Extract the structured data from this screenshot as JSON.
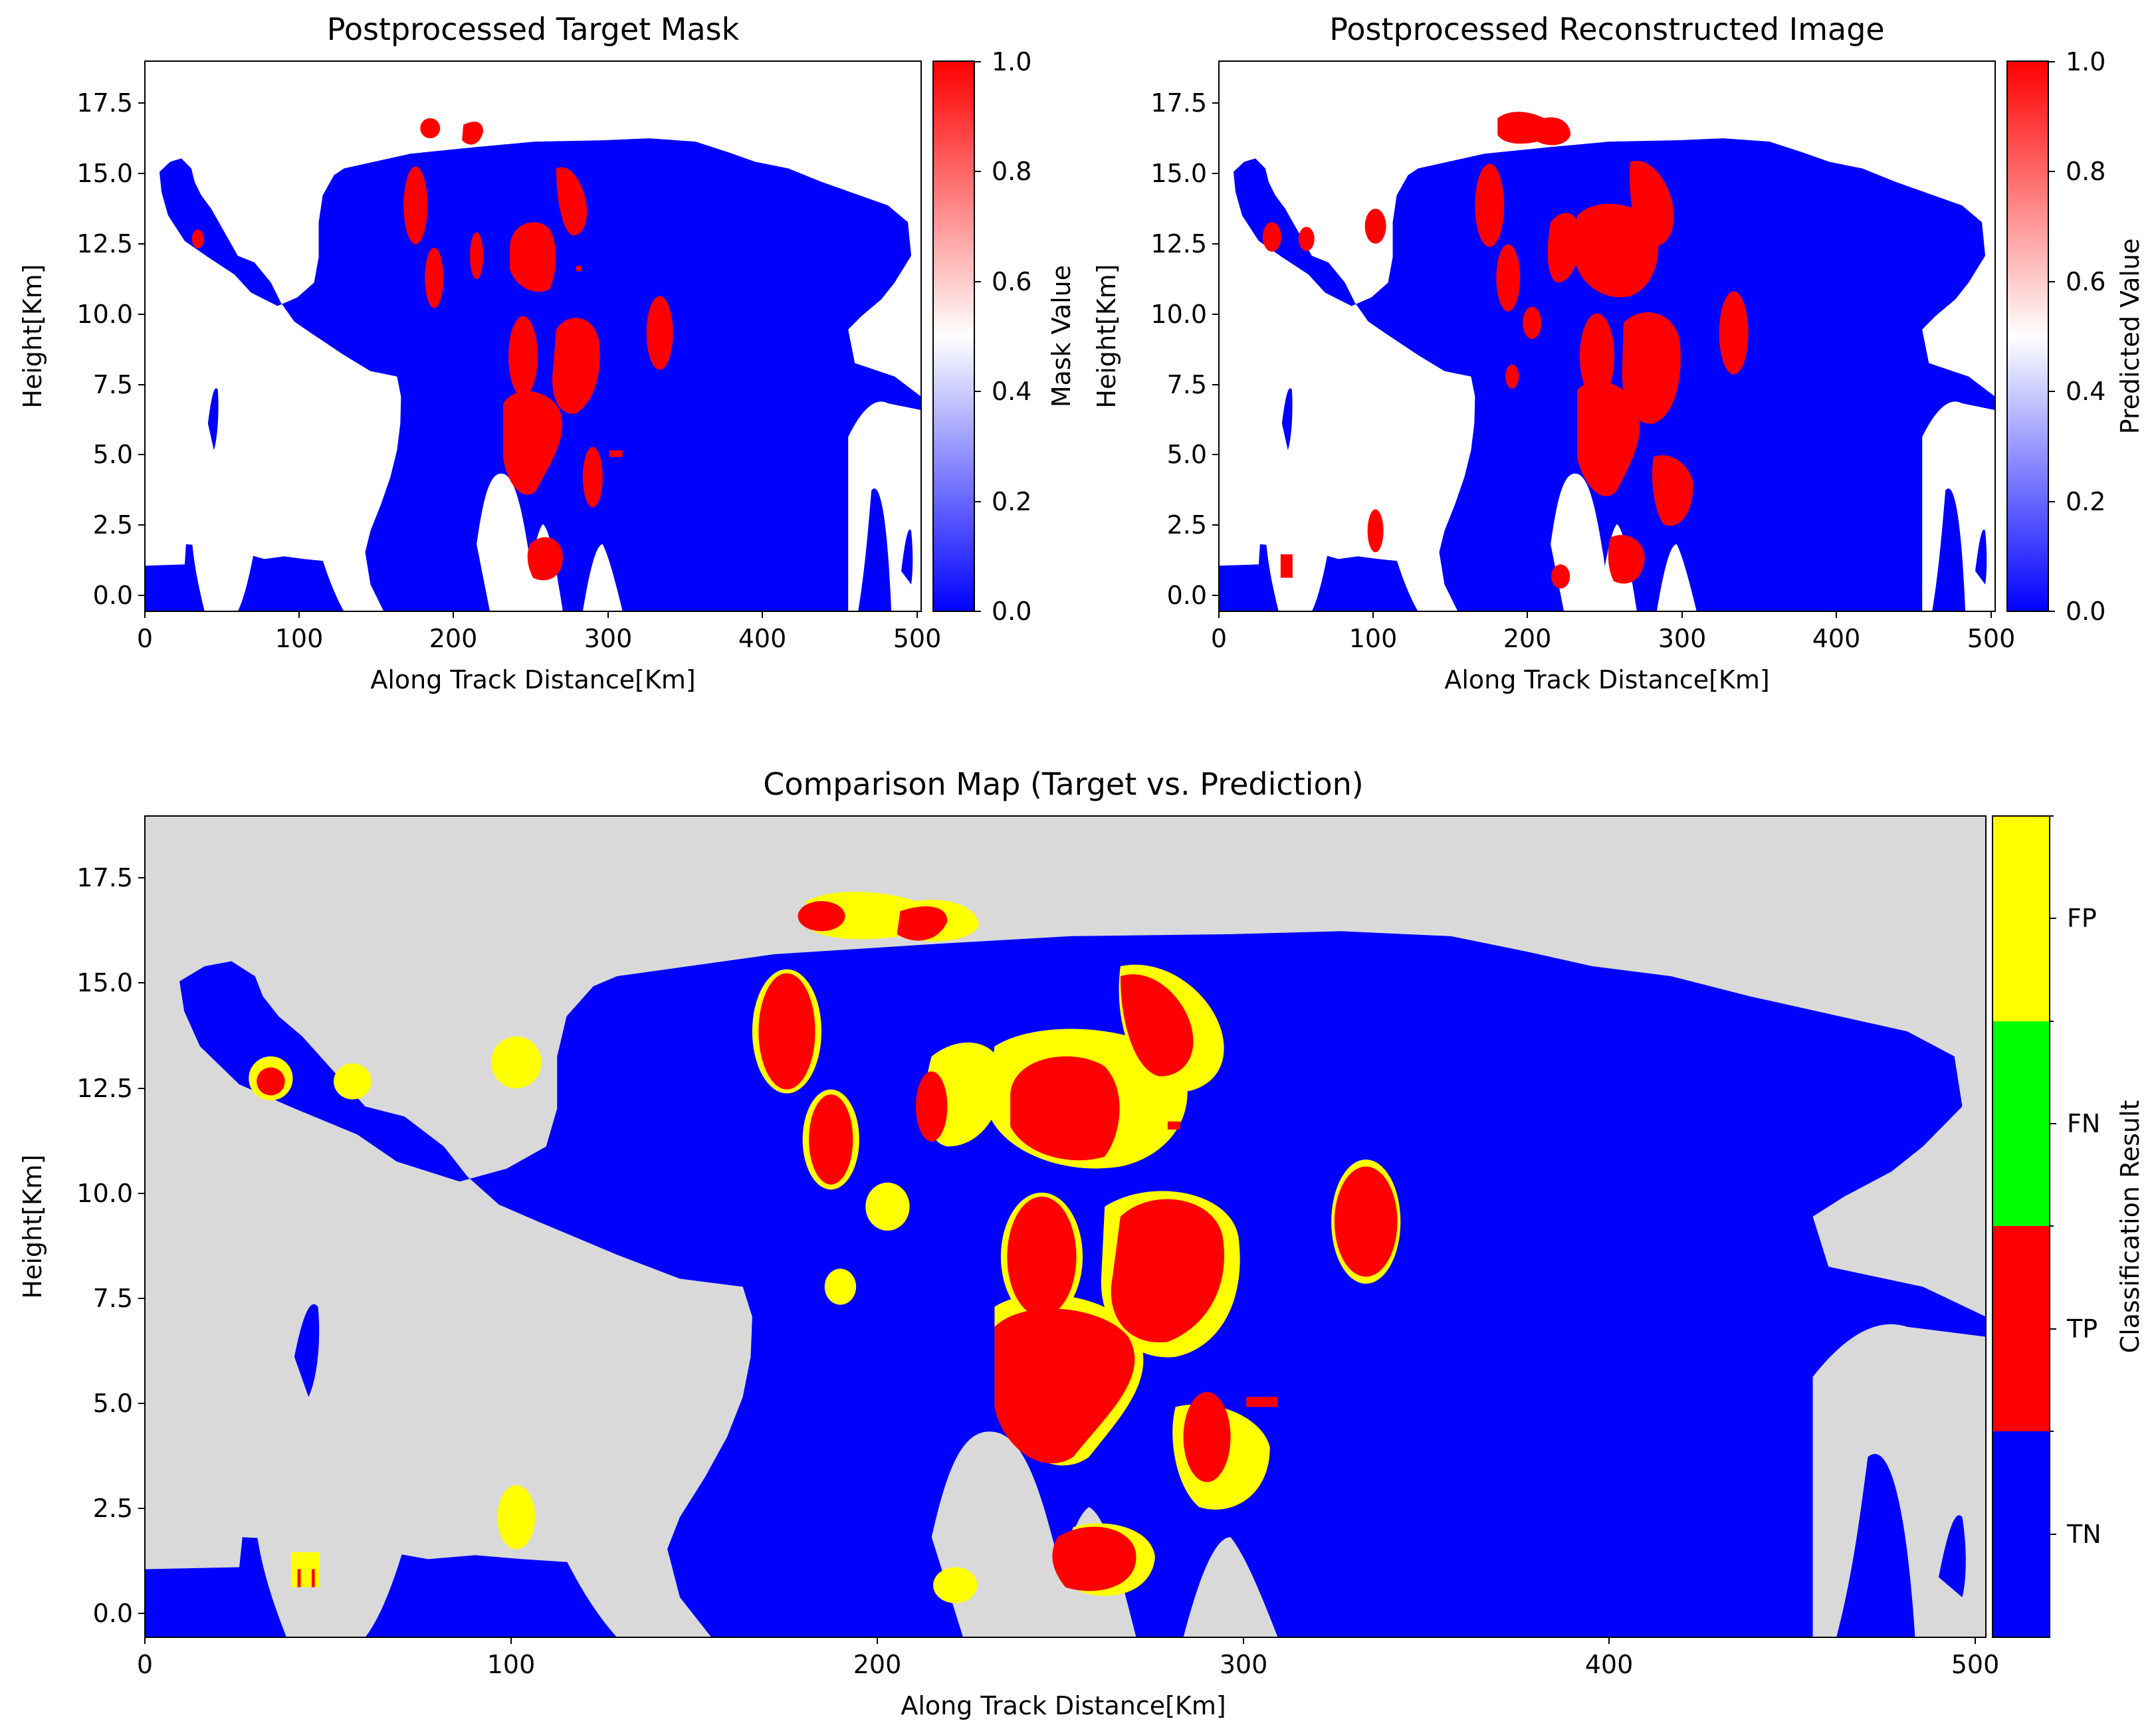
{
  "colors": {
    "blue": "#0000ff",
    "red": "#ff0000",
    "white": "#ffffff",
    "yellow": "#ffff00",
    "green": "#00ff00",
    "gray": "#d9d9d9"
  },
  "chart_data": [
    {
      "type": "heatmap",
      "title": "Postprocessed Target Mask",
      "xlabel": "Along Track Distance[Km]",
      "ylabel": "Height[Km]",
      "xlim": [
        0,
        503
      ],
      "ylim": [
        -0.5,
        19
      ],
      "xticks": [
        "0",
        "100",
        "200",
        "300",
        "400",
        "500"
      ],
      "yticks": [
        "0.0",
        "2.5",
        "5.0",
        "7.5",
        "10.0",
        "12.5",
        "15.0",
        "17.5"
      ],
      "colorbar": {
        "label": "Mask Value",
        "range": [
          0,
          1
        ],
        "ticks": [
          "0.0",
          "0.2",
          "0.4",
          "0.6",
          "0.8",
          "1.0"
        ],
        "colormap": "bwr"
      },
      "background_value": "NaN (white)",
      "cloud_value": 0.0,
      "positive_regions": [
        {
          "x": 35,
          "y": 12.8
        },
        {
          "x": 175,
          "y": 13.9
        },
        {
          "x": 186,
          "y": 11.2
        },
        {
          "x": 215,
          "y": 12.2
        },
        {
          "x": 245,
          "y": 12.5
        },
        {
          "x": 272,
          "y": 14.2
        },
        {
          "x": 245,
          "y": 9.5
        },
        {
          "x": 275,
          "y": 8.5
        },
        {
          "x": 250,
          "y": 5.6
        },
        {
          "x": 333,
          "y": 9.4
        },
        {
          "x": 290,
          "y": 3.4
        },
        {
          "x": 263,
          "y": 1.7
        },
        {
          "x": 190,
          "y": 16.7
        },
        {
          "x": 215,
          "y": 16.5
        }
      ]
    },
    {
      "type": "heatmap",
      "title": "Postprocessed Reconstructed Image",
      "xlabel": "Along Track Distance[Km]",
      "ylabel": "Height[Km]",
      "xlim": [
        0,
        503
      ],
      "ylim": [
        -0.5,
        19
      ],
      "xticks": [
        "0",
        "100",
        "200",
        "300",
        "400",
        "500"
      ],
      "yticks": [
        "0.0",
        "2.5",
        "5.0",
        "7.5",
        "10.0",
        "12.5",
        "15.0",
        "17.5"
      ],
      "colorbar": {
        "label": "Predicted Value",
        "range": [
          0,
          1
        ],
        "ticks": [
          "0.0",
          "0.2",
          "0.4",
          "0.6",
          "0.8",
          "1.0"
        ],
        "colormap": "bwr"
      },
      "background_value": "NaN (white)",
      "cloud_value": 0.0,
      "positive_regions": [
        {
          "x": 35,
          "y": 12.8
        },
        {
          "x": 58,
          "y": 12.7
        },
        {
          "x": 101,
          "y": 13.4
        },
        {
          "x": 175,
          "y": 13.9
        },
        {
          "x": 186,
          "y": 11.2
        },
        {
          "x": 217,
          "y": 12.2
        },
        {
          "x": 247,
          "y": 12.8
        },
        {
          "x": 273,
          "y": 13.8
        },
        {
          "x": 228,
          "y": 9.3
        },
        {
          "x": 245,
          "y": 9.5
        },
        {
          "x": 278,
          "y": 8.5
        },
        {
          "x": 255,
          "y": 5.8
        },
        {
          "x": 333,
          "y": 9.4
        },
        {
          "x": 292,
          "y": 3.4
        },
        {
          "x": 263,
          "y": 1.6
        },
        {
          "x": 101,
          "y": 2.5
        },
        {
          "x": 44,
          "y": 1.2
        },
        {
          "x": 190,
          "y": 16.7
        },
        {
          "x": 215,
          "y": 16.5
        },
        {
          "x": 222,
          "y": 1.0
        },
        {
          "x": 188,
          "y": 7.8
        }
      ]
    },
    {
      "type": "heatmap",
      "title": "Comparison Map (Target vs. Prediction)",
      "xlabel": "Along Track Distance[Km]",
      "ylabel": "Height[Km]",
      "xlim": [
        0,
        503
      ],
      "ylim": [
        -0.5,
        19
      ],
      "xticks": [
        "0",
        "100",
        "200",
        "300",
        "400",
        "500"
      ],
      "yticks": [
        "0.0",
        "2.5",
        "5.0",
        "7.5",
        "10.0",
        "12.5",
        "15.0",
        "17.5"
      ],
      "colorbar": {
        "label": "Classification Result",
        "categories": [
          "TN",
          "TP",
          "FN",
          "FP"
        ]
      },
      "background": "gray (no data)",
      "categories": [
        "TN",
        "TP",
        "FN",
        "FP"
      ]
    }
  ]
}
